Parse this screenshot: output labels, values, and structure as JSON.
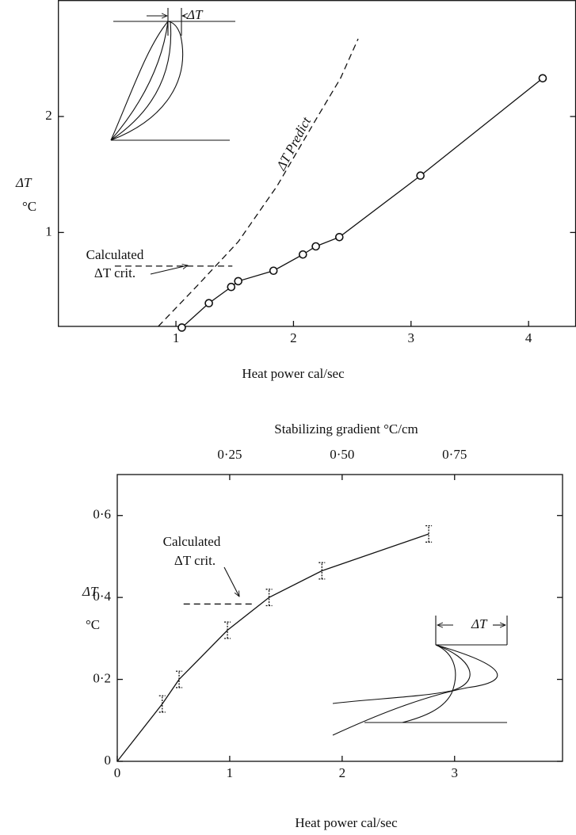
{
  "chart_data": [
    {
      "type": "scatter",
      "xlabel": "Heat power cal/sec",
      "ylabel": "ΔT",
      "yunit": "°C",
      "xlim": [
        0,
        4.4
      ],
      "ylim": [
        0.19,
        3.0
      ],
      "xticks": [
        1,
        2,
        3,
        4
      ],
      "yticks": [
        1,
        2
      ],
      "annotations": [
        "ΔT Predict",
        "Calculated",
        "ΔT crit.",
        "ΔT"
      ],
      "series": [
        {
          "color": "#111111",
          "line": "solid",
          "marker": "circle",
          "x": [
            1.05,
            1.28,
            1.47,
            1.53,
            1.83,
            2.08,
            2.19,
            2.39,
            3.08,
            4.12
          ],
          "values": [
            0.18,
            0.39,
            0.53,
            0.58,
            0.67,
            0.81,
            0.88,
            0.96,
            1.49,
            2.33
          ]
        },
        {
          "color": "#111111",
          "line": "dashed",
          "marker": null,
          "x": [
            0.85,
            1.19,
            1.53,
            1.86,
            2.2,
            2.4,
            2.55
          ],
          "values": [
            0.19,
            0.55,
            0.92,
            1.4,
            1.99,
            2.33,
            2.67
          ]
        },
        {
          "color": "#111111",
          "line": "dashed",
          "marker": null,
          "x": [
            0.48,
            1.48
          ],
          "values": [
            0.71,
            0.71
          ]
        }
      ]
    },
    {
      "type": "scatter",
      "xlabel": "Heat power cal/sec",
      "ylabel": "ΔT",
      "yunit": "°C",
      "x2label": "Stabilizing gradient °C/cm",
      "xlim": [
        0,
        3.96
      ],
      "ylim": [
        0,
        0.7
      ],
      "x2lim": [
        0,
        0.99
      ],
      "xticks": [
        0,
        1,
        2,
        3
      ],
      "yticks": [
        0,
        {
          "value": 0.2,
          "label": "0·2"
        },
        {
          "value": 0.4,
          "label": "0·4"
        },
        {
          "value": 0.6,
          "label": "0·6"
        }
      ],
      "x2ticks": [
        {
          "value": 0.25,
          "label": "0·25"
        },
        {
          "value": 0.5,
          "label": "0·50"
        },
        {
          "value": 0.75,
          "label": "0·75"
        }
      ],
      "annotations": [
        "Calculated",
        "ΔT crit.",
        "ΔT"
      ],
      "series": [
        {
          "color": "#111111",
          "line": "solid",
          "marker": "errorbar",
          "x": [
            0.4,
            0.55,
            0.98,
            1.35,
            1.82,
            2.77
          ],
          "values": [
            0.14,
            0.2,
            0.32,
            0.4,
            0.465,
            0.555
          ],
          "errors": [
            0.02,
            0.02,
            0.02,
            0.02,
            0.02,
            0.02
          ]
        },
        {
          "color": "#111111",
          "line": "solid",
          "marker": null,
          "x": [
            0,
            0.4
          ],
          "values": [
            0,
            0.14
          ]
        },
        {
          "color": "#111111",
          "line": "dashed",
          "marker": null,
          "x": [
            0.59,
            1.21
          ],
          "values": [
            0.384,
            0.384
          ]
        }
      ]
    }
  ]
}
